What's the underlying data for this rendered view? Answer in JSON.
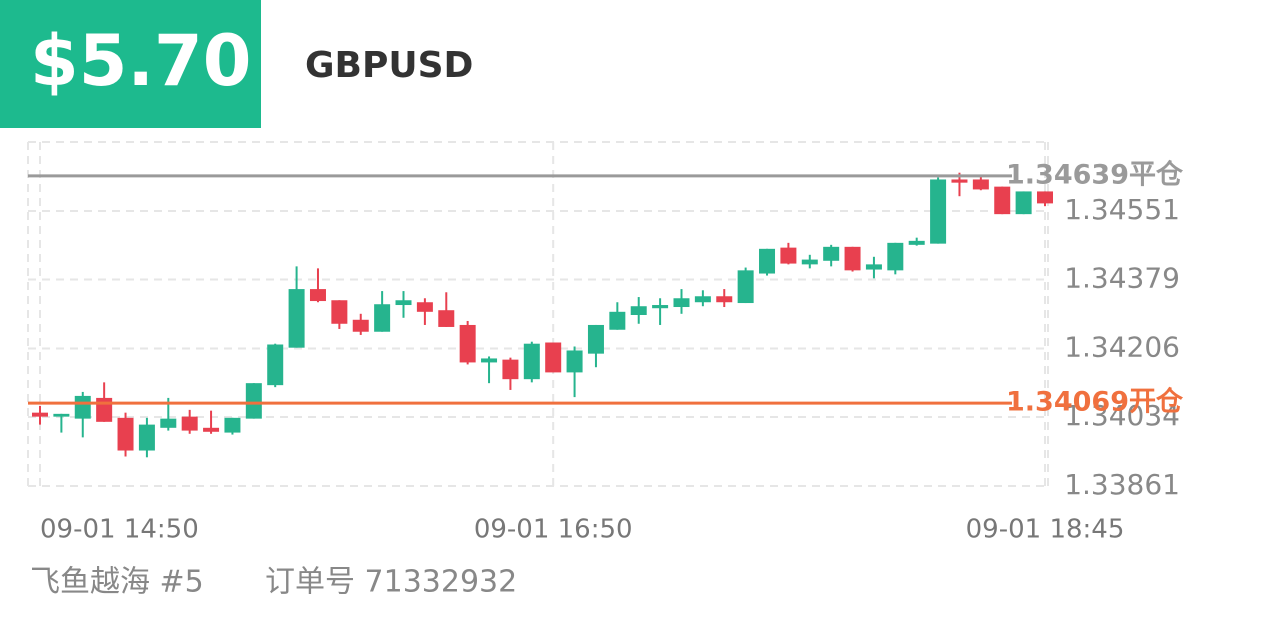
{
  "header": {
    "price": "$5.70",
    "symbol": "GBPUSD"
  },
  "chart_data": {
    "type": "candlestick",
    "categories": [
      "09-01 14:50",
      null,
      null,
      null,
      null,
      null,
      null,
      null,
      null,
      null,
      null,
      null,
      null,
      null,
      null,
      null,
      null,
      null,
      null,
      null,
      null,
      null,
      null,
      null,
      "09-01 16:50",
      null,
      null,
      null,
      null,
      null,
      null,
      null,
      null,
      null,
      null,
      null,
      null,
      null,
      null,
      null,
      null,
      null,
      null,
      null,
      null,
      null,
      null,
      "09-01 18:45"
    ],
    "open": [
      1.34045,
      1.34035,
      1.3403,
      1.34082,
      1.34032,
      1.3395,
      1.34007,
      1.34035,
      1.34007,
      1.33995,
      1.3403,
      1.34114,
      1.34208,
      1.34355,
      1.34327,
      1.34278,
      1.34248,
      1.34315,
      1.34322,
      1.34302,
      1.34265,
      1.34171,
      1.34178,
      1.34129,
      1.34221,
      1.34146,
      1.34193,
      1.34253,
      1.3429,
      1.34307,
      1.3431,
      1.34322,
      1.34337,
      1.3432,
      1.34394,
      1.34459,
      1.34417,
      1.34426,
      1.34461,
      1.34404,
      1.34402,
      1.34466,
      1.34469,
      1.3463,
      1.3463,
      1.34612,
      1.34543,
      1.346
    ],
    "high": [
      1.34062,
      1.34042,
      1.34097,
      1.34121,
      1.34045,
      1.34032,
      1.34082,
      1.34052,
      1.3405,
      1.34032,
      1.34119,
      1.34218,
      1.34412,
      1.34407,
      1.34327,
      1.34293,
      1.3435,
      1.3435,
      1.34332,
      1.34347,
      1.34275,
      1.34186,
      1.34183,
      1.34223,
      1.34221,
      1.34211,
      1.34265,
      1.34322,
      1.34335,
      1.34332,
      1.34355,
      1.34352,
      1.34355,
      1.34409,
      1.34456,
      1.34471,
      1.34441,
      1.34466,
      1.34461,
      1.34436,
      1.34471,
      1.34484,
      1.34635,
      1.34647,
      1.34642,
      1.34612,
      1.346,
      1.346
    ],
    "low": [
      1.34015,
      1.33995,
      1.33983,
      1.34022,
      1.33935,
      1.33933,
      1.34,
      1.33992,
      1.33992,
      1.3399,
      1.3403,
      1.34109,
      1.34208,
      1.34322,
      1.34255,
      1.3424,
      1.34248,
      1.34283,
      1.34265,
      1.3426,
      1.34166,
      1.34119,
      1.34102,
      1.34121,
      1.34146,
      1.34084,
      1.34159,
      1.34253,
      1.34268,
      1.34265,
      1.34293,
      1.34312,
      1.3431,
      1.3432,
      1.34389,
      1.34417,
      1.34407,
      1.34412,
      1.34399,
      1.34382,
      1.34392,
      1.34464,
      1.34469,
      1.34588,
      1.34603,
      1.34543,
      1.34543,
      1.34563
    ],
    "close": [
      1.34035,
      1.34042,
      1.34087,
      1.34022,
      1.3395,
      1.34015,
      1.3403,
      1.34,
      1.33997,
      1.34032,
      1.34119,
      1.34216,
      1.34355,
      1.34325,
      1.34268,
      1.34248,
      1.34317,
      1.34327,
      1.34298,
      1.3426,
      1.34171,
      1.34181,
      1.34129,
      1.34218,
      1.34146,
      1.34201,
      1.34265,
      1.34298,
      1.34312,
      1.34315,
      1.34332,
      1.34337,
      1.34322,
      1.34402,
      1.34456,
      1.34419,
      1.34429,
      1.34461,
      1.34402,
      1.34417,
      1.34471,
      1.34476,
      1.3463,
      1.34622,
      1.34605,
      1.34543,
      1.346,
      1.3457
    ],
    "up_color": "#26b48e",
    "down_color": "#e8404f",
    "ylim": [
      1.33861,
      1.34724
    ],
    "yticks": [
      1.33861,
      1.34034,
      1.34206,
      1.34379,
      1.34551
    ],
    "grid": true,
    "reference_lines": [
      {
        "value": 1.34639,
        "label": "1.34639平仓",
        "color": "#9a9a9a"
      },
      {
        "value": 1.34069,
        "label": "1.34069开仓",
        "color": "#f0703e"
      }
    ]
  },
  "footer": {
    "account": "飞鱼越海 #5",
    "order": "订单号 71332932"
  }
}
